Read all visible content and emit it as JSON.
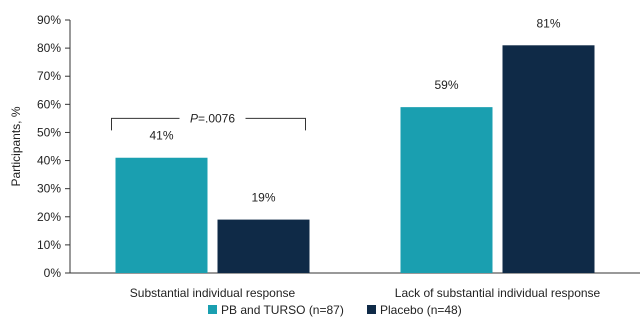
{
  "chart_data": {
    "type": "bar",
    "title": "",
    "xlabel": "",
    "ylabel": "Participants, %",
    "ylim": [
      0,
      90
    ],
    "yticks": [
      0,
      10,
      20,
      30,
      40,
      50,
      60,
      70,
      80,
      90
    ],
    "ytick_labels": [
      "0%",
      "10%",
      "20%",
      "30%",
      "40%",
      "50%",
      "60%",
      "70%",
      "80%",
      "90%"
    ],
    "grid": false,
    "legend_position": "bottom",
    "categories": [
      "Substantial individual response",
      "Lack of substantial individual response"
    ],
    "series": [
      {
        "name": "PB and TURSO (n=87)",
        "values": [
          41,
          59
        ],
        "labels": [
          "41%",
          "59%"
        ],
        "color": "#1a9fb0"
      },
      {
        "name": "Placebo (n=48)",
        "values": [
          19,
          81
        ],
        "labels": [
          "19%",
          "81%"
        ],
        "color": "#0f2a47"
      }
    ],
    "annotations": [
      {
        "text_italic": "P",
        "text": "=.0076",
        "category_index": 0,
        "y": 55
      }
    ]
  }
}
